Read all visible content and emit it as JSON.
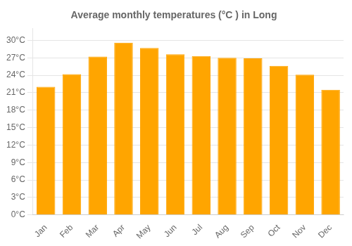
{
  "chart_data": {
    "type": "bar",
    "title": "Average monthly temperatures (°C ) in Long",
    "categories": [
      "Jan",
      "Feb",
      "Mar",
      "Apr",
      "May",
      "Jun",
      "Jul",
      "Aug",
      "Sep",
      "Oct",
      "Nov",
      "Dec"
    ],
    "values": [
      22.0,
      24.2,
      27.2,
      29.6,
      28.7,
      27.6,
      27.3,
      27.0,
      26.9,
      25.6,
      24.1,
      21.5
    ],
    "color": "#FFA500",
    "ylim": [
      0,
      32
    ],
    "yticks": [
      {
        "value": 0,
        "label": "0°C"
      },
      {
        "value": 3,
        "label": "3°C"
      },
      {
        "value": 6,
        "label": "6°C"
      },
      {
        "value": 9,
        "label": "9°C"
      },
      {
        "value": 12,
        "label": "12°C"
      },
      {
        "value": 15,
        "label": "15°C"
      },
      {
        "value": 18,
        "label": "18°C"
      },
      {
        "value": 21,
        "label": "21°C"
      },
      {
        "value": 24,
        "label": "24°C"
      },
      {
        "value": 27,
        "label": "27°C"
      },
      {
        "value": 30,
        "label": "30°C"
      }
    ],
    "grid": true
  }
}
